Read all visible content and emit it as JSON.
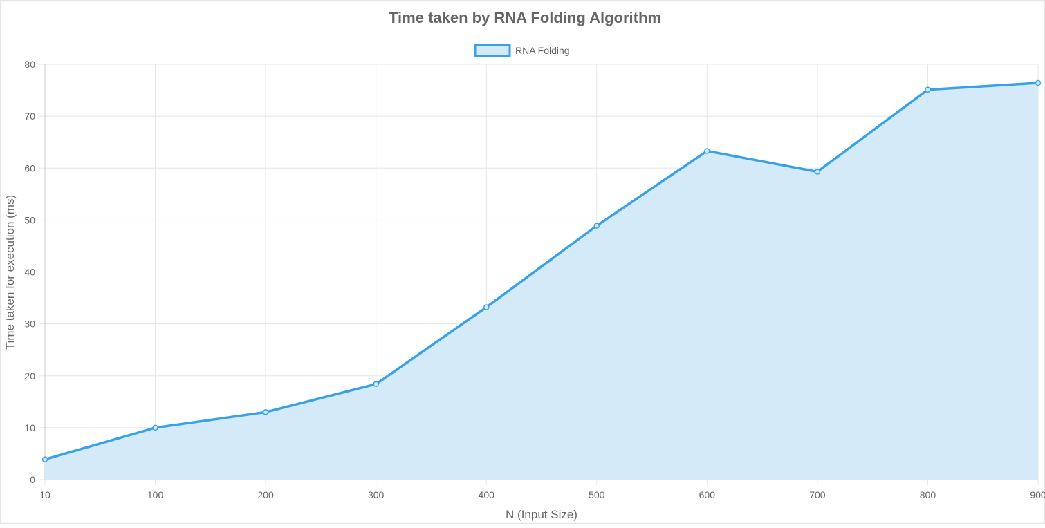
{
  "chart_data": {
    "type": "area",
    "title": "Time taken by RNA Folding Algorithm",
    "xlabel": "N (Input Size)",
    "ylabel": "Time taken for execution (ms)",
    "categories": [
      "10",
      "100",
      "200",
      "300",
      "400",
      "500",
      "600",
      "700",
      "800",
      "900"
    ],
    "series": [
      {
        "name": "RNA Folding",
        "values": [
          3.9,
          10.0,
          13.0,
          18.4,
          33.2,
          48.9,
          63.3,
          59.3,
          75.1,
          76.4
        ]
      }
    ],
    "ylim": [
      0,
      80
    ],
    "yticks": [
      "0",
      "10",
      "20",
      "30",
      "40",
      "50",
      "60",
      "70",
      "80"
    ],
    "grid": true,
    "legend_position": "top",
    "colors": {
      "line": "#36a2eb",
      "fill": "#d5eaf8",
      "grid": "#e5e5e5",
      "axis_text": "#666666"
    }
  }
}
